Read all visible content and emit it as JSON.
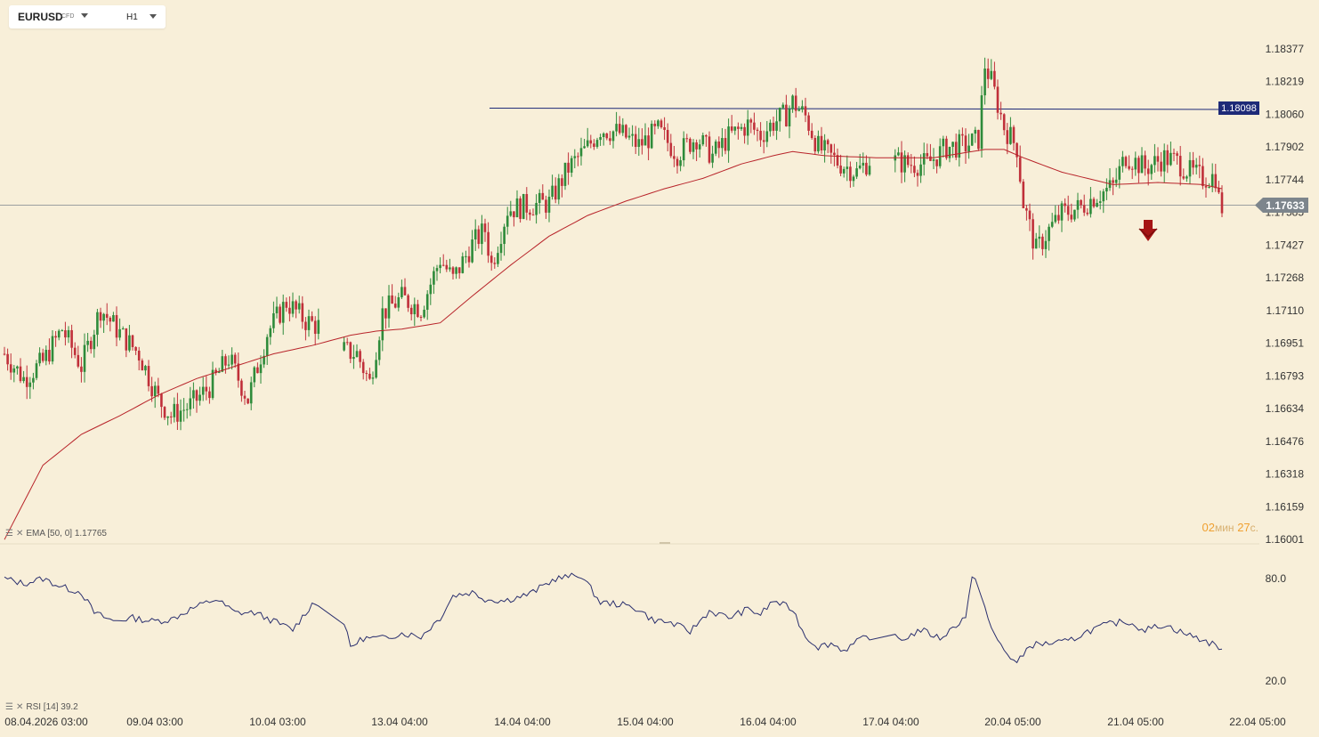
{
  "toolbar": {
    "symbol": "EURUSD",
    "instrument_type": "CFD",
    "timeframe": "H1",
    "symbol_caret": "chevron-down-icon",
    "timeframe_caret": "chevron-down-icon"
  },
  "indicators": {
    "ema_label": "EMA [50, 0] 1.17765",
    "rsi_label": "RSI [14] 39.2"
  },
  "countdown": {
    "minutes": "02",
    "minutes_unit": "мин",
    "seconds": "27",
    "seconds_unit": "с."
  },
  "colors": {
    "background": "#f8efd9",
    "bull": "#2e8b3a",
    "bear": "#c0303a",
    "ema": "#b8242a",
    "rsi": "#2a2f6e",
    "resistance": "#1e2a78",
    "current_price_badge": "#7d858c",
    "signal_arrow": "#a51515"
  },
  "chart_data": [
    {
      "type": "candlestick",
      "symbol": "EURUSD",
      "timeframe": "H1",
      "y_ticks": [
        "1.18377",
        "1.18219",
        "1.18060",
        "1.17902",
        "1.17744",
        "1.17585",
        "1.17427",
        "1.17268",
        "1.17110",
        "1.16951",
        "1.16793",
        "1.16634",
        "1.16476",
        "1.16318",
        "1.16159",
        "1.16001"
      ],
      "ylim": [
        1.16001,
        1.18377
      ],
      "x_ticks": [
        "08.04.2026 03:00",
        "09.04 03:00",
        "10.04 03:00",
        "13.04 04:00",
        "14.04 04:00",
        "15.04 04:00",
        "16.04 04:00",
        "17.04 04:00",
        "20.04 05:00",
        "21.04 05:00",
        "22.04 05:00"
      ],
      "current_price": "1.17633",
      "resistance_level": "1.18098",
      "signal": "down-arrow",
      "close_path": [
        [
          0,
          1.169
        ],
        [
          6,
          1.1678
        ],
        [
          12,
          1.1686
        ],
        [
          18,
          1.1702
        ],
        [
          24,
          1.1684
        ],
        [
          30,
          1.1712
        ],
        [
          36,
          1.17
        ],
        [
          42,
          1.169
        ],
        [
          48,
          1.1668
        ],
        [
          52,
          1.166
        ],
        [
          58,
          1.1665
        ],
        [
          64,
          1.1674
        ],
        [
          70,
          1.1688
        ],
        [
          76,
          1.1668
        ],
        [
          82,
          1.17
        ],
        [
          88,
          1.1715
        ],
        [
          94,
          1.1706
        ],
        [
          100,
          1.1702
        ],
        [
          104,
          1.1692
        ],
        [
          110,
          1.169
        ],
        [
          114,
          1.1676
        ],
        [
          118,
          1.171
        ],
        [
          124,
          1.1717
        ],
        [
          130,
          1.1712
        ],
        [
          136,
          1.1736
        ],
        [
          140,
          1.1726
        ],
        [
          146,
          1.1743
        ],
        [
          150,
          1.175
        ],
        [
          152,
          1.1733
        ],
        [
          157,
          1.176
        ],
        [
          164,
          1.1762
        ],
        [
          170,
          1.1763
        ],
        [
          176,
          1.178
        ],
        [
          182,
          1.179
        ],
        [
          186,
          1.1799
        ],
        [
          192,
          1.1797
        ],
        [
          198,
          1.1791
        ],
        [
          204,
          1.1798
        ],
        [
          210,
          1.1787
        ],
        [
          216,
          1.1795
        ],
        [
          221,
          1.1786
        ],
        [
          226,
          1.1795
        ],
        [
          232,
          1.1801
        ],
        [
          236,
          1.1796
        ],
        [
          240,
          1.1802
        ],
        [
          244,
          1.1806
        ],
        [
          246,
          1.1812
        ],
        [
          250,
          1.1805
        ],
        [
          254,
          1.179
        ],
        [
          260,
          1.1783
        ],
        [
          266,
          1.1778
        ],
        [
          270,
          1.1784
        ],
        [
          276,
          1.1784
        ],
        [
          282,
          1.1782
        ],
        [
          288,
          1.1782
        ],
        [
          294,
          1.179
        ],
        [
          300,
          1.1791
        ],
        [
          304,
          1.1794
        ],
        [
          306,
          1.183
        ],
        [
          308,
          1.1822
        ],
        [
          312,
          1.18
        ],
        [
          316,
          1.179
        ],
        [
          318,
          1.1763
        ],
        [
          322,
          1.174
        ],
        [
          326,
          1.175
        ],
        [
          330,
          1.1758
        ],
        [
          336,
          1.1761
        ],
        [
          340,
          1.1766
        ],
        [
          346,
          1.1771
        ],
        [
          350,
          1.1786
        ],
        [
          356,
          1.178
        ],
        [
          362,
          1.1785
        ],
        [
          366,
          1.1783
        ],
        [
          370,
          1.1778
        ],
        [
          374,
          1.1775
        ],
        [
          378,
          1.1776
        ],
        [
          379,
          1.1765
        ],
        [
          380,
          1.1761
        ]
      ],
      "ema_path": [
        [
          0,
          1.16
        ],
        [
          12,
          1.1636
        ],
        [
          24,
          1.1651
        ],
        [
          36,
          1.166
        ],
        [
          48,
          1.167
        ],
        [
          60,
          1.1678
        ],
        [
          72,
          1.1684
        ],
        [
          84,
          1.169
        ],
        [
          96,
          1.1694
        ],
        [
          108,
          1.1699
        ],
        [
          116,
          1.1701
        ],
        [
          124,
          1.1702
        ],
        [
          136,
          1.1705
        ],
        [
          146,
          1.1718
        ],
        [
          158,
          1.1733
        ],
        [
          170,
          1.1747
        ],
        [
          182,
          1.1757
        ],
        [
          194,
          1.1764
        ],
        [
          206,
          1.177
        ],
        [
          218,
          1.1775
        ],
        [
          230,
          1.1782
        ],
        [
          240,
          1.1786
        ],
        [
          246,
          1.1788
        ],
        [
          256,
          1.1786
        ],
        [
          272,
          1.1785
        ],
        [
          290,
          1.1785
        ],
        [
          306,
          1.1789
        ],
        [
          312,
          1.1789
        ],
        [
          318,
          1.1785
        ],
        [
          330,
          1.1778
        ],
        [
          346,
          1.1772
        ],
        [
          360,
          1.1773
        ],
        [
          374,
          1.1772
        ],
        [
          380,
          1.177
        ]
      ]
    },
    {
      "type": "line",
      "name": "RSI [14]",
      "y_ticks": [
        "80.0",
        "20.0"
      ],
      "ylim": [
        13,
        95
      ],
      "last_value": 39.2,
      "path": [
        [
          0,
          80
        ],
        [
          6,
          77
        ],
        [
          12,
          80
        ],
        [
          18,
          75
        ],
        [
          24,
          72
        ],
        [
          28,
          60
        ],
        [
          34,
          55
        ],
        [
          40,
          57
        ],
        [
          46,
          55
        ],
        [
          52,
          56
        ],
        [
          58,
          62
        ],
        [
          66,
          68
        ],
        [
          72,
          60
        ],
        [
          78,
          60
        ],
        [
          84,
          55
        ],
        [
          90,
          50
        ],
        [
          96,
          65
        ],
        [
          104,
          67
        ],
        [
          108,
          40
        ],
        [
          112,
          45
        ],
        [
          118,
          45
        ],
        [
          124,
          48
        ],
        [
          130,
          46
        ],
        [
          136,
          57
        ],
        [
          140,
          70
        ],
        [
          146,
          72
        ],
        [
          150,
          68
        ],
        [
          156,
          67
        ],
        [
          164,
          71
        ],
        [
          172,
          80
        ],
        [
          180,
          82
        ],
        [
          186,
          66
        ],
        [
          192,
          65
        ],
        [
          198,
          62
        ],
        [
          202,
          56
        ],
        [
          208,
          54
        ],
        [
          214,
          49
        ],
        [
          220,
          61
        ],
        [
          226,
          57
        ],
        [
          232,
          62
        ],
        [
          236,
          59
        ],
        [
          240,
          67
        ],
        [
          246,
          62
        ],
        [
          250,
          46
        ],
        [
          254,
          40
        ],
        [
          258,
          42
        ],
        [
          262,
          38
        ],
        [
          268,
          45
        ],
        [
          274,
          48
        ],
        [
          280,
          44
        ],
        [
          286,
          50
        ],
        [
          292,
          45
        ],
        [
          296,
          51
        ],
        [
          300,
          58
        ],
        [
          302,
          80
        ],
        [
          304,
          76
        ],
        [
          308,
          50
        ],
        [
          312,
          38
        ],
        [
          316,
          30
        ],
        [
          320,
          41
        ],
        [
          326,
          42
        ],
        [
          332,
          43
        ],
        [
          338,
          49
        ],
        [
          344,
          53
        ],
        [
          350,
          55
        ],
        [
          356,
          50
        ],
        [
          362,
          53
        ],
        [
          368,
          48
        ],
        [
          374,
          44
        ],
        [
          380,
          39.2
        ]
      ]
    }
  ]
}
